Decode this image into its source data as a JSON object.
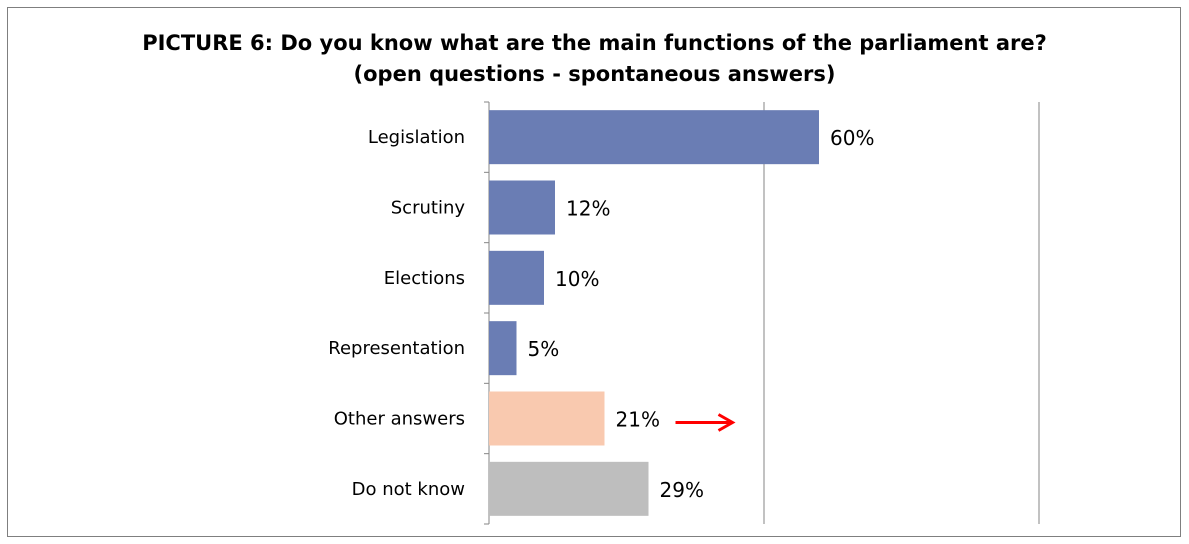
{
  "chart_data": {
    "type": "bar",
    "orientation": "horizontal",
    "title": "PICTURE 6: Do you know what are the main functions of the parliament are?",
    "subtitle": "(open questions - spontaneous answers)",
    "categories": [
      "Legislation",
      "Scrutiny",
      "Elections",
      "Representation",
      "Other answers",
      "Do not know"
    ],
    "values": [
      60,
      12,
      10,
      5,
      21,
      29
    ],
    "value_labels": [
      "60%",
      "12%",
      "10%",
      "5%",
      "21%",
      "29%"
    ],
    "bar_colors": [
      "#6a7db4",
      "#6a7db4",
      "#6a7db4",
      "#6a7db4",
      "#f9c9af",
      "#bebebe"
    ],
    "xlim": [
      0,
      100
    ],
    "gridlines_at": [
      50,
      100
    ],
    "grid": true,
    "legend": "none",
    "annotation": {
      "type": "arrow",
      "target": "Other answers",
      "color": "#ff0000"
    }
  }
}
